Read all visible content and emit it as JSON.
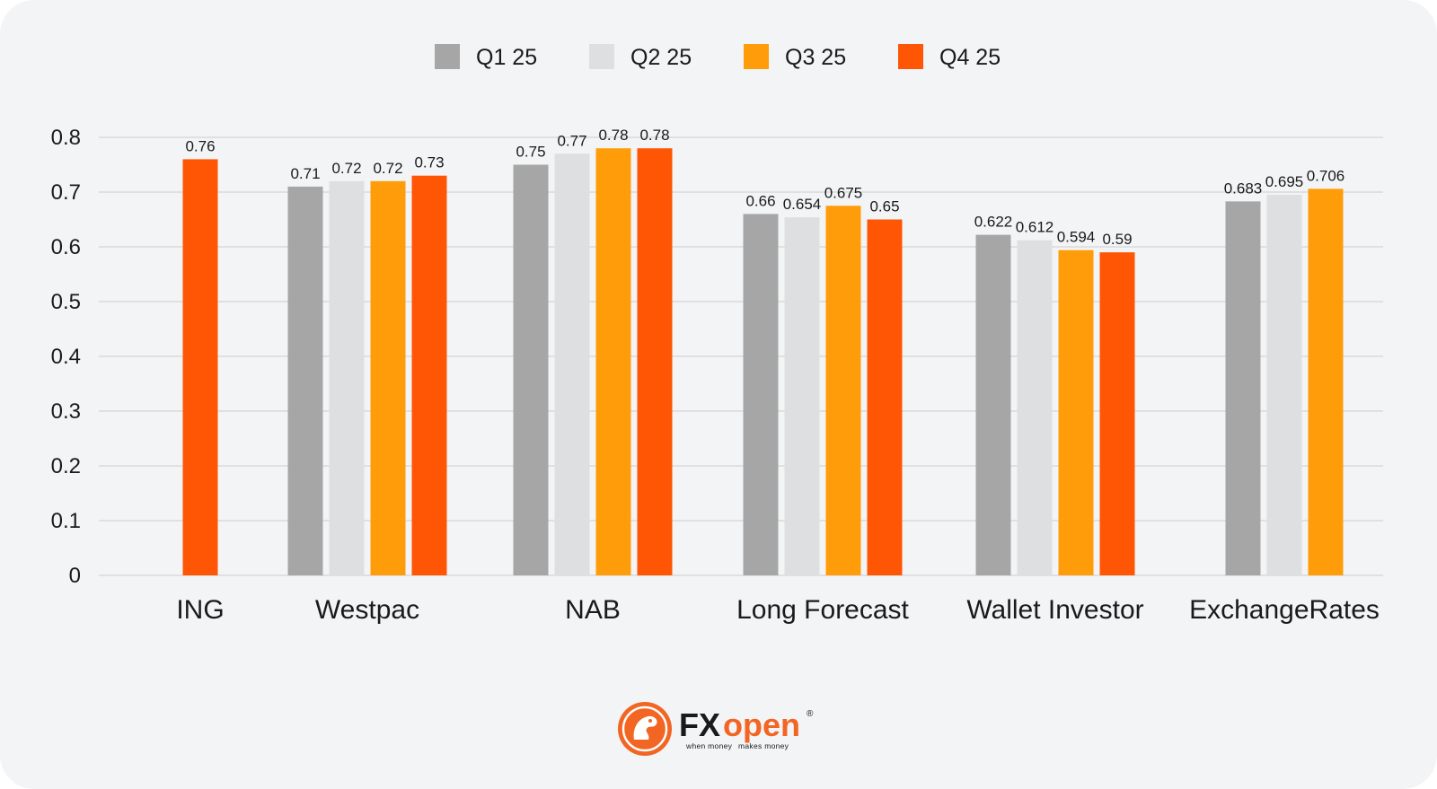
{
  "chart_data": {
    "type": "bar",
    "title": "",
    "xlabel": "",
    "ylabel": "",
    "ylim": [
      0,
      0.8
    ],
    "yticks": [
      "0",
      "0.1",
      "0.2",
      "0.3",
      "0.4",
      "0.5",
      "0.6",
      "0.7",
      "0.8"
    ],
    "grid": true,
    "legend_position": "top-center",
    "categories": [
      "ING",
      "Westpac",
      "NAB",
      "Long Forecast",
      "Wallet Investor",
      "ExchangeRates"
    ],
    "series": [
      {
        "name": "Q1 25",
        "color": "#a6a6a6",
        "values": [
          null,
          0.71,
          0.75,
          0.66,
          0.622,
          0.683
        ],
        "labels": [
          "",
          "0.71",
          "0.75",
          "0.66",
          "0.622",
          "0.683"
        ]
      },
      {
        "name": "Q2 25",
        "color": "#dedfe0",
        "values": [
          null,
          0.72,
          0.77,
          0.654,
          0.612,
          0.695
        ],
        "labels": [
          "",
          "0.72",
          "0.77",
          "0.654",
          "0.612",
          "0.695"
        ]
      },
      {
        "name": "Q3 25",
        "color": "#ff9c09",
        "values": [
          null,
          0.72,
          0.78,
          0.675,
          0.594,
          0.706
        ],
        "labels": [
          "",
          "0.72",
          "0.78",
          "0.675",
          "0.594",
          "0.706"
        ]
      },
      {
        "name": "Q4 25",
        "color": "#ff5606",
        "values": [
          0.76,
          0.73,
          0.78,
          0.65,
          0.59,
          null
        ],
        "labels": [
          "0.76",
          "0.73",
          "0.78",
          "0.65",
          "0.59",
          ""
        ]
      }
    ]
  },
  "brand": {
    "name_fx": "FX",
    "name_open": "open",
    "registered": "®",
    "tagline_a": "when money",
    "tagline_b": "makes money",
    "accent_color": "#f26522",
    "logo_icon": "lion-emblem-icon"
  }
}
